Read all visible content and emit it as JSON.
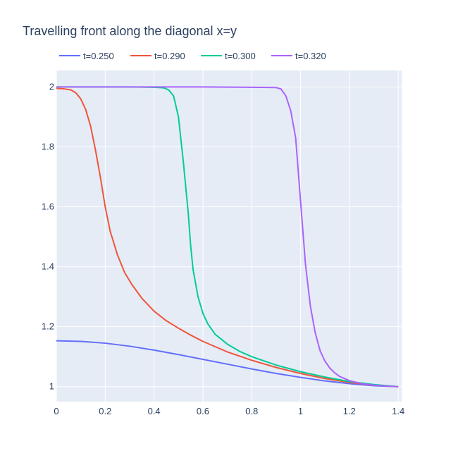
{
  "chart_data": {
    "type": "line",
    "title": "Travelling front along the diagonal x=y",
    "xlabel": "",
    "ylabel": "",
    "xlim": [
      0,
      1.414
    ],
    "ylim": [
      0.95,
      2.055
    ],
    "xticks": [
      0,
      0.2,
      0.4,
      0.6,
      0.8,
      1,
      1.2,
      1.4
    ],
    "xtick_labels": [
      "0",
      "0.2",
      "0.4",
      "0.6",
      "0.8",
      "1",
      "1.2",
      "1.4"
    ],
    "yticks": [
      1,
      1.2,
      1.4,
      1.6,
      1.8,
      2
    ],
    "ytick_labels": [
      "1",
      "1.2",
      "1.4",
      "1.6",
      "1.8",
      "2"
    ],
    "grid": true,
    "legend_position": "top-left, horizontal",
    "series": [
      {
        "name": "t=0.250",
        "color": "#636efa",
        "x": [
          0,
          0.1,
          0.2,
          0.3,
          0.4,
          0.5,
          0.6,
          0.7,
          0.8,
          0.9,
          1.0,
          1.1,
          1.2,
          1.3,
          1.4
        ],
        "y": [
          1.153,
          1.151,
          1.145,
          1.135,
          1.122,
          1.107,
          1.091,
          1.075,
          1.059,
          1.044,
          1.031,
          1.019,
          1.01,
          1.003,
          1.0
        ]
      },
      {
        "name": "t=0.290",
        "color": "#ef553b",
        "x": [
          0,
          0.03,
          0.06,
          0.08,
          0.1,
          0.12,
          0.14,
          0.16,
          0.18,
          0.2,
          0.22,
          0.25,
          0.28,
          0.31,
          0.35,
          0.4,
          0.45,
          0.5,
          0.55,
          0.6,
          0.7,
          0.8,
          0.9,
          1.0,
          1.1,
          1.2,
          1.3,
          1.4
        ],
        "y": [
          1.995,
          1.994,
          1.99,
          1.98,
          1.96,
          1.925,
          1.87,
          1.79,
          1.7,
          1.6,
          1.52,
          1.44,
          1.38,
          1.34,
          1.295,
          1.252,
          1.22,
          1.195,
          1.172,
          1.151,
          1.116,
          1.088,
          1.064,
          1.044,
          1.027,
          1.014,
          1.005,
          1.0
        ]
      },
      {
        "name": "t=0.300",
        "color": "#00cc96",
        "x": [
          0,
          0.1,
          0.2,
          0.3,
          0.4,
          0.44,
          0.46,
          0.48,
          0.5,
          0.52,
          0.54,
          0.55,
          0.56,
          0.58,
          0.6,
          0.62,
          0.65,
          0.7,
          0.75,
          0.8,
          0.9,
          1.0,
          1.1,
          1.2,
          1.3,
          1.4
        ],
        "y": [
          2.0,
          2.0,
          2.0,
          2.0,
          1.999,
          1.997,
          1.99,
          1.97,
          1.9,
          1.75,
          1.58,
          1.47,
          1.39,
          1.3,
          1.245,
          1.21,
          1.175,
          1.142,
          1.118,
          1.1,
          1.072,
          1.05,
          1.032,
          1.017,
          1.007,
          1.0
        ]
      },
      {
        "name": "t=0.320",
        "color": "#ab63fa",
        "x": [
          0,
          0.2,
          0.4,
          0.6,
          0.8,
          0.9,
          0.92,
          0.94,
          0.96,
          0.98,
          1.0,
          1.02,
          1.04,
          1.06,
          1.08,
          1.1,
          1.12,
          1.14,
          1.16,
          1.2,
          1.25,
          1.3,
          1.35,
          1.4
        ],
        "y": [
          2.0,
          2.0,
          2.0,
          2.0,
          1.999,
          1.998,
          1.993,
          1.97,
          1.92,
          1.83,
          1.62,
          1.41,
          1.27,
          1.18,
          1.12,
          1.085,
          1.062,
          1.046,
          1.034,
          1.02,
          1.01,
          1.005,
          1.002,
          1.0
        ]
      }
    ]
  }
}
